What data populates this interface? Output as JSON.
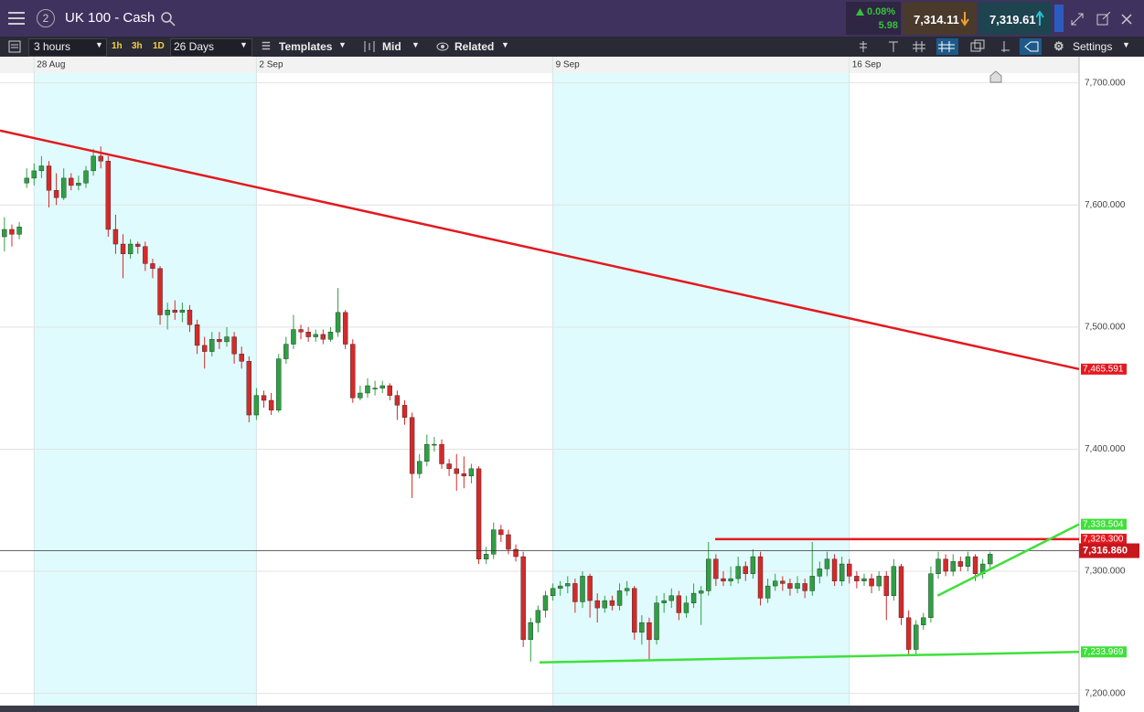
{
  "header": {
    "badge": "2",
    "title": "UK 100 - Cash",
    "change_pct": "0.08%",
    "change": "5.98",
    "sell": "7,314.11",
    "buy": "7,319.61"
  },
  "toolbar": {
    "interval": "3 hours",
    "quick": [
      "1h",
      "3h",
      "1D"
    ],
    "range": "26 Days",
    "templates": "Templates",
    "price": "Mid",
    "related": "Related",
    "settings": "Settings"
  },
  "chart_data": {
    "type": "candlestick",
    "x_labels": [
      {
        "value": 4,
        "label": "28 Aug"
      },
      {
        "value": 34,
        "label": "2 Sep"
      },
      {
        "value": 74,
        "label": "9 Sep"
      },
      {
        "value": 114,
        "label": "16 Sep"
      }
    ],
    "xlim": [
      -0.6,
      145
    ],
    "ylim": [
      7190,
      7708
    ],
    "yticks": [
      {
        "value": 7200,
        "label": "7,200.000"
      },
      {
        "value": 7300,
        "label": "7,300.000"
      },
      {
        "value": 7400,
        "label": "7,400.000"
      },
      {
        "value": 7500,
        "label": "7,500.000"
      },
      {
        "value": 7600,
        "label": "7,600.000"
      },
      {
        "value": 7700,
        "label": "7,700.000"
      }
    ],
    "up_color": "#2ea043",
    "down_color": "#d42a2a",
    "candles": [
      [
        7574,
        7590,
        7562,
        7580
      ],
      [
        7580,
        7584,
        7566,
        7576
      ],
      [
        7576,
        7586,
        7572,
        7582
      ],
      [
        7618,
        7630,
        7614,
        7622
      ],
      [
        7622,
        7634,
        7616,
        7628
      ],
      [
        7628,
        7640,
        7622,
        7632
      ],
      [
        7632,
        7636,
        7598,
        7612
      ],
      [
        7612,
        7626,
        7600,
        7606
      ],
      [
        7606,
        7630,
        7604,
        7622
      ],
      [
        7622,
        7626,
        7612,
        7616
      ],
      [
        7616,
        7624,
        7612,
        7618
      ],
      [
        7618,
        7632,
        7614,
        7628
      ],
      [
        7628,
        7646,
        7624,
        7640
      ],
      [
        7640,
        7648,
        7630,
        7636
      ],
      [
        7636,
        7640,
        7574,
        7580
      ],
      [
        7580,
        7592,
        7560,
        7568
      ],
      [
        7568,
        7576,
        7540,
        7560
      ],
      [
        7560,
        7572,
        7556,
        7568
      ],
      [
        7568,
        7570,
        7560,
        7566
      ],
      [
        7566,
        7570,
        7546,
        7552
      ],
      [
        7552,
        7556,
        7540,
        7548
      ],
      [
        7548,
        7550,
        7502,
        7510
      ],
      [
        7510,
        7520,
        7498,
        7514
      ],
      [
        7514,
        7522,
        7506,
        7512
      ],
      [
        7512,
        7520,
        7504,
        7514
      ],
      [
        7514,
        7518,
        7496,
        7502
      ],
      [
        7502,
        7506,
        7478,
        7485
      ],
      [
        7485,
        7492,
        7466,
        7480
      ],
      [
        7480,
        7496,
        7476,
        7490
      ],
      [
        7490,
        7496,
        7482,
        7488
      ],
      [
        7488,
        7500,
        7484,
        7492
      ],
      [
        7492,
        7496,
        7470,
        7478
      ],
      [
        7478,
        7484,
        7466,
        7472
      ],
      [
        7472,
        7476,
        7422,
        7428
      ],
      [
        7428,
        7450,
        7424,
        7444
      ],
      [
        7444,
        7448,
        7434,
        7440
      ],
      [
        7440,
        7446,
        7428,
        7432
      ],
      [
        7432,
        7478,
        7430,
        7474
      ],
      [
        7474,
        7492,
        7470,
        7486
      ],
      [
        7486,
        7510,
        7482,
        7498
      ],
      [
        7498,
        7502,
        7490,
        7496
      ],
      [
        7496,
        7500,
        7488,
        7492
      ],
      [
        7492,
        7498,
        7488,
        7494
      ],
      [
        7494,
        7498,
        7486,
        7490
      ],
      [
        7490,
        7500,
        7488,
        7496
      ],
      [
        7496,
        7532,
        7492,
        7512
      ],
      [
        7512,
        7514,
        7482,
        7486
      ],
      [
        7486,
        7490,
        7438,
        7442
      ],
      [
        7442,
        7452,
        7440,
        7446
      ],
      [
        7446,
        7458,
        7442,
        7452
      ],
      [
        7450,
        7456,
        7444,
        7450
      ],
      [
        7450,
        7456,
        7446,
        7452
      ],
      [
        7452,
        7454,
        7440,
        7444
      ],
      [
        7444,
        7448,
        7424,
        7436
      ],
      [
        7436,
        7440,
        7420,
        7426
      ],
      [
        7426,
        7430,
        7360,
        7380
      ],
      [
        7380,
        7396,
        7376,
        7390
      ],
      [
        7390,
        7412,
        7386,
        7404
      ],
      [
        7404,
        7410,
        7398,
        7404
      ],
      [
        7404,
        7408,
        7384,
        7388
      ],
      [
        7388,
        7392,
        7378,
        7384
      ],
      [
        7384,
        7396,
        7366,
        7380
      ],
      [
        7380,
        7394,
        7368,
        7378
      ],
      [
        7378,
        7388,
        7372,
        7384
      ],
      [
        7384,
        7386,
        7306,
        7310
      ],
      [
        7310,
        7320,
        7306,
        7314
      ],
      [
        7314,
        7340,
        7310,
        7334
      ],
      [
        7334,
        7338,
        7324,
        7330
      ],
      [
        7330,
        7334,
        7314,
        7318
      ],
      [
        7318,
        7322,
        7308,
        7312
      ],
      [
        7312,
        7316,
        7238,
        7244
      ],
      [
        7244,
        7262,
        7226,
        7258
      ],
      [
        7258,
        7272,
        7250,
        7268
      ],
      [
        7268,
        7284,
        7262,
        7280
      ],
      [
        7280,
        7290,
        7276,
        7286
      ],
      [
        7286,
        7292,
        7280,
        7288
      ],
      [
        7288,
        7296,
        7282,
        7290
      ],
      [
        7290,
        7294,
        7266,
        7275
      ],
      [
        7275,
        7300,
        7270,
        7296
      ],
      [
        7296,
        7298,
        7262,
        7276
      ],
      [
        7276,
        7282,
        7258,
        7270
      ],
      [
        7270,
        7280,
        7266,
        7276
      ],
      [
        7276,
        7280,
        7268,
        7272
      ],
      [
        7272,
        7290,
        7268,
        7284
      ],
      [
        7284,
        7292,
        7280,
        7286
      ],
      [
        7286,
        7288,
        7244,
        7250
      ],
      [
        7250,
        7264,
        7240,
        7258
      ],
      [
        7258,
        7262,
        7228,
        7244
      ],
      [
        7244,
        7280,
        7240,
        7274
      ],
      [
        7274,
        7282,
        7266,
        7276
      ],
      [
        7276,
        7286,
        7270,
        7280
      ],
      [
        7280,
        7284,
        7260,
        7266
      ],
      [
        7266,
        7280,
        7262,
        7274
      ],
      [
        7274,
        7290,
        7270,
        7282
      ],
      [
        7282,
        7288,
        7256,
        7284
      ],
      [
        7284,
        7324,
        7280,
        7310
      ],
      [
        7310,
        7314,
        7288,
        7294
      ],
      [
        7294,
        7300,
        7288,
        7292
      ],
      [
        7292,
        7304,
        7288,
        7294
      ],
      [
        7294,
        7312,
        7290,
        7304
      ],
      [
        7304,
        7308,
        7292,
        7298
      ],
      [
        7298,
        7318,
        7294,
        7312
      ],
      [
        7312,
        7316,
        7272,
        7278
      ],
      [
        7278,
        7294,
        7274,
        7288
      ],
      [
        7288,
        7298,
        7284,
        7292
      ],
      [
        7292,
        7296,
        7284,
        7290
      ],
      [
        7290,
        7294,
        7280,
        7286
      ],
      [
        7286,
        7296,
        7282,
        7290
      ],
      [
        7290,
        7294,
        7278,
        7284
      ],
      [
        7284,
        7324,
        7280,
        7296
      ],
      [
        7296,
        7308,
        7290,
        7302
      ],
      [
        7302,
        7316,
        7296,
        7310
      ],
      [
        7310,
        7314,
        7288,
        7292
      ],
      [
        7292,
        7312,
        7288,
        7306
      ],
      [
        7306,
        7310,
        7290,
        7296
      ],
      [
        7296,
        7300,
        7286,
        7292
      ],
      [
        7292,
        7298,
        7288,
        7294
      ],
      [
        7294,
        7298,
        7282,
        7288
      ],
      [
        7288,
        7300,
        7284,
        7296
      ],
      [
        7296,
        7300,
        7260,
        7280
      ],
      [
        7280,
        7310,
        7276,
        7304
      ],
      [
        7304,
        7306,
        7256,
        7262
      ],
      [
        7262,
        7268,
        7232,
        7236
      ],
      [
        7236,
        7260,
        7232,
        7256
      ],
      [
        7256,
        7266,
        7252,
        7262
      ],
      [
        7262,
        7304,
        7258,
        7298
      ],
      [
        7298,
        7316,
        7294,
        7310
      ],
      [
        7310,
        7314,
        7296,
        7300
      ],
      [
        7300,
        7314,
        7296,
        7308
      ],
      [
        7308,
        7312,
        7300,
        7304
      ],
      [
        7304,
        7316,
        7300,
        7312
      ],
      [
        7312,
        7314,
        7292,
        7298
      ],
      [
        7298,
        7310,
        7294,
        7306
      ],
      [
        7306,
        7316,
        7302,
        7314
      ]
    ],
    "lines": [
      {
        "color": "#e3191f",
        "x": [
          -0.6,
          145
        ],
        "y": [
          7661,
          7465.591
        ],
        "label": "7,465.591"
      },
      {
        "color": "#e3191f",
        "x": [
          95.9,
          145
        ],
        "y": [
          7326.3,
          7326.3
        ],
        "label": "7,326.300"
      },
      {
        "color": "#3ee03a",
        "x": [
          72.2,
          145
        ],
        "y": [
          7225.4,
          7233.969
        ],
        "label": "7,233.969"
      },
      {
        "color": "#3ee03a",
        "x": [
          125.9,
          145
        ],
        "y": [
          7280,
          7338.504
        ],
        "label": "7,338.504"
      }
    ],
    "current_price": {
      "value": 7316.86,
      "label": "7,316.860",
      "color": "#c8161d"
    }
  }
}
